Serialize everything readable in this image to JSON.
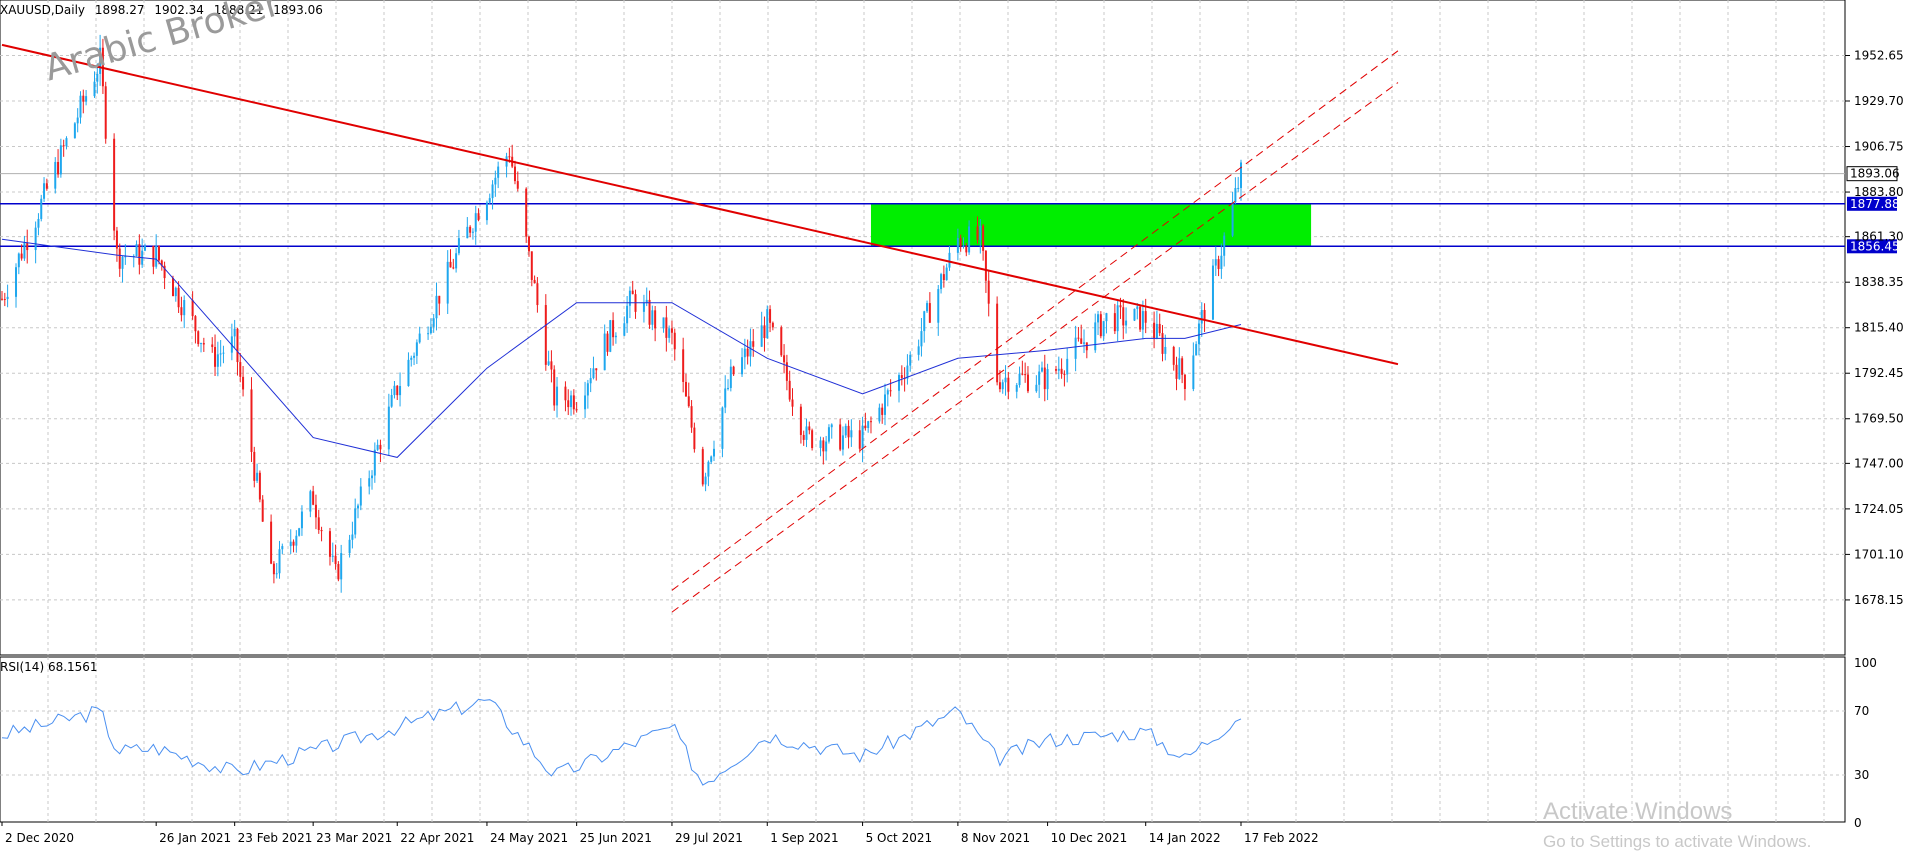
{
  "header": {
    "symbol_timeframe": "XAUUSD,Daily",
    "open": "1898.27",
    "high": "1902.34",
    "low": "1888.21",
    "close": "1893.06"
  },
  "watermark": "Arabic Broker",
  "rsi": {
    "label": "RSI(14) 68.1561",
    "levels": [
      "100",
      "70",
      "30",
      "0"
    ]
  },
  "windows_notice": {
    "title": "Activate Windows",
    "subtitle": "Go to Settings to activate Windows."
  },
  "colors": {
    "bull": "#1ea7ee",
    "bear": "#ee1c1c",
    "ma": "#1f2fd6",
    "trend": "#e00000",
    "zone": "#00ee00",
    "level": "#0000cc",
    "rsi": "#4a8ff0"
  },
  "chart_data": {
    "type": "candlestick",
    "symbol": "XAUUSD",
    "timeframe": "Daily",
    "y_ticks": [
      "1952.65",
      "1929.70",
      "1906.75",
      "1883.80",
      "1861.30",
      "1838.35",
      "1815.40",
      "1792.45",
      "1769.50",
      "1747.00",
      "1724.05",
      "1701.10",
      "1678.15"
    ],
    "x_ticks": [
      "2 Dec 2020",
      "26 Jan 2021",
      "23 Feb 2021",
      "23 Mar 2021",
      "22 Apr 2021",
      "24 May 2021",
      "25 Jun 2021",
      "29 Jul 2021",
      "1 Sep 2021",
      "5 Oct 2021",
      "8 Nov 2021",
      "10 Dec 2021",
      "14 Jan 2022",
      "17 Feb 2022"
    ],
    "ylim": [
      1665,
      1965
    ],
    "current_price": "1893.06",
    "horizontal_levels": [
      {
        "value": 1877.88,
        "label": "1877.88"
      },
      {
        "value": 1856.45,
        "label": "1856.45"
      }
    ],
    "supply_zone": {
      "from": "8 Oct 2021",
      "to": "14 Mar 2022",
      "low": 1856.45,
      "high": 1877.88
    },
    "close_path": [
      [
        "2 Dec 2020",
        1830
      ],
      [
        "6 Jan 2021",
        1950
      ],
      [
        "12 Jan 2021",
        1852
      ],
      [
        "26 Jan 2021",
        1852
      ],
      [
        "15 Feb 2021",
        1800
      ],
      [
        "23 Feb 2021",
        1808
      ],
      [
        "8 Mar 2021",
        1690
      ],
      [
        "23 Mar 2021",
        1730
      ],
      [
        "31 Mar 2021",
        1690
      ],
      [
        "22 Apr 2021",
        1785
      ],
      [
        "19 May 2021",
        1870
      ],
      [
        "1 Jun 2021",
        1905
      ],
      [
        "17 Jun 2021",
        1780
      ],
      [
        "25 Jun 2021",
        1780
      ],
      [
        "6 Jul 2021",
        1810
      ],
      [
        "15 Jul 2021",
        1830
      ],
      [
        "29 Jul 2021",
        1810
      ],
      [
        "9 Aug 2021",
        1740
      ],
      [
        "19 Aug 2021",
        1790
      ],
      [
        "1 Sep 2021",
        1818
      ],
      [
        "15 Sep 2021",
        1760
      ],
      [
        "5 Oct 2021",
        1760
      ],
      [
        "22 Oct 2021",
        1800
      ],
      [
        "8 Nov 2021",
        1860
      ],
      [
        "16 Nov 2021",
        1860
      ],
      [
        "22 Nov 2021",
        1790
      ],
      [
        "10 Dec 2021",
        1790
      ],
      [
        "31 Dec 2021",
        1820
      ],
      [
        "14 Jan 2022",
        1820
      ],
      [
        "28 Jan 2022",
        1790
      ],
      [
        "11 Feb 2022",
        1860
      ],
      [
        "17 Feb 2022",
        1893
      ]
    ],
    "ma_path": [
      [
        "2 Dec 2020",
        1860
      ],
      [
        "12 Jan 2021",
        1852
      ],
      [
        "26 Jan 2021",
        1850
      ],
      [
        "23 Feb 2021",
        1805
      ],
      [
        "23 Mar 2021",
        1760
      ],
      [
        "22 Apr 2021",
        1750
      ],
      [
        "24 May 2021",
        1795
      ],
      [
        "25 Jun 2021",
        1828
      ],
      [
        "29 Jul 2021",
        1828
      ],
      [
        "1 Sep 2021",
        1800
      ],
      [
        "5 Oct 2021",
        1782
      ],
      [
        "8 Nov 2021",
        1800
      ],
      [
        "10 Dec 2021",
        1804
      ],
      [
        "14 Jan 2022",
        1810
      ],
      [
        "28 Jan 2022",
        1810
      ],
      [
        "17 Feb 2022",
        1817
      ]
    ],
    "rsi_path": [
      [
        "2 Dec 2020",
        55
      ],
      [
        "6 Jan 2021",
        70
      ],
      [
        "12 Jan 2021",
        45
      ],
      [
        "26 Jan 2021",
        47
      ],
      [
        "23 Feb 2021",
        32
      ],
      [
        "23 Mar 2021",
        45
      ],
      [
        "22 Apr 2021",
        60
      ],
      [
        "24 May 2021",
        77
      ],
      [
        "17 Jun 2021",
        30
      ],
      [
        "25 Jun 2021",
        35
      ],
      [
        "29 Jul 2021",
        60
      ],
      [
        "9 Aug 2021",
        25
      ],
      [
        "1 Sep 2021",
        55
      ],
      [
        "5 Oct 2021",
        42
      ],
      [
        "8 Nov 2021",
        70
      ],
      [
        "22 Nov 2021",
        40
      ],
      [
        "10 Dec 2021",
        52
      ],
      [
        "14 Jan 2022",
        57
      ],
      [
        "28 Jan 2022",
        40
      ],
      [
        "17 Feb 2022",
        68
      ]
    ],
    "trend_lines": [
      {
        "style": "solid",
        "from": [
          "2 Dec 2020",
          1958
        ],
        "to": [
          "14 Apr 2022",
          1797
        ]
      },
      {
        "style": "dashed",
        "from": [
          "29 Jul 2021",
          1683
        ],
        "to": [
          "14 Apr 2022",
          1955
        ]
      },
      {
        "style": "dashed",
        "from": [
          "29 Jul 2021",
          1672
        ],
        "to": [
          "14 Apr 2022",
          1939
        ]
      }
    ]
  }
}
